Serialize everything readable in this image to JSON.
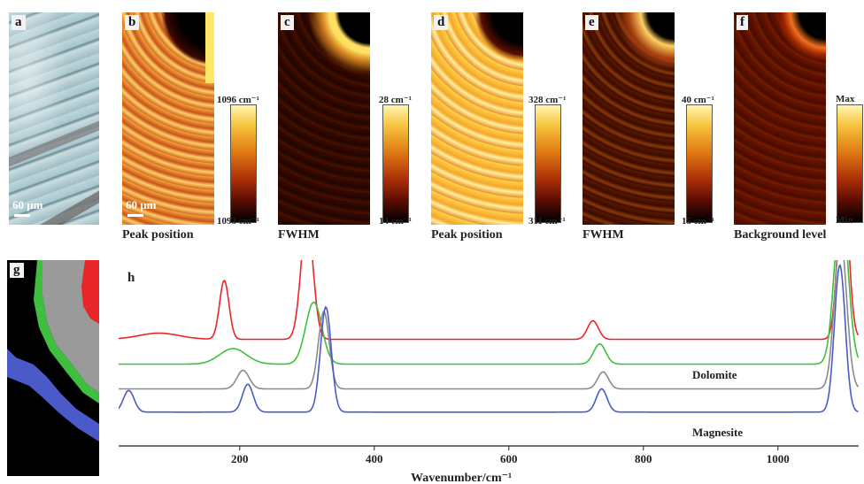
{
  "panels": {
    "a": {
      "label": "a",
      "scale": "60 μm"
    },
    "b": {
      "label": "b",
      "scale": "60 μm",
      "caption": "Peak position",
      "cb_top": "1096 cm⁻¹",
      "cb_bottom": "1093 cm⁻¹"
    },
    "c": {
      "label": "c",
      "caption": "FWHM",
      "cb_top": "28 cm⁻¹",
      "cb_bottom": "14 cm⁻¹"
    },
    "d": {
      "label": "d",
      "caption": "Peak position",
      "cb_top": "328 cm⁻¹",
      "cb_bottom": "311 cm⁻¹"
    },
    "e": {
      "label": "e",
      "caption": "FWHM",
      "cb_top": "40 cm⁻¹",
      "cb_bottom": "15 cm⁻¹"
    },
    "f": {
      "label": "f",
      "caption": "Background level",
      "cb_top": "Max",
      "cb_bottom": "Min"
    },
    "g": {
      "label": "g"
    },
    "h": {
      "label": "h"
    }
  },
  "colors": {
    "red": "#e8262a",
    "green": "#3fbf3f",
    "gray": "#8a8a8a",
    "blue": "#4a5ac8"
  },
  "chart_data": {
    "type": "line",
    "xlabel": "Wavenumber/cm⁻¹",
    "ylabel": "",
    "xlim": [
      20,
      1120
    ],
    "xticks": [
      200,
      400,
      600,
      800,
      1000
    ],
    "annotations": [
      "Dolomite",
      "Magnesite"
    ],
    "series": [
      {
        "color": "#e8262a",
        "baseline": 0.62,
        "peaks": [
          [
            80,
            0.04,
            30
          ],
          [
            177,
            0.38,
            7
          ],
          [
            300,
            0.78,
            9
          ],
          [
            725,
            0.12,
            8
          ],
          [
            1097,
            1.05,
            8
          ],
          [
            1140,
            0.05,
            10
          ]
        ]
      },
      {
        "color": "#3fbf3f",
        "baseline": 0.46,
        "peaks": [
          [
            190,
            0.1,
            20
          ],
          [
            310,
            0.4,
            12
          ],
          [
            735,
            0.13,
            9
          ],
          [
            1094,
            1.05,
            10
          ]
        ]
      },
      {
        "color": "#8a8a8a",
        "baseline": 0.3,
        "peaks": [
          [
            205,
            0.12,
            9
          ],
          [
            325,
            0.5,
            8
          ],
          [
            740,
            0.11,
            8
          ],
          [
            1093,
            0.98,
            9
          ]
        ]
      },
      {
        "color": "#4a5ac8",
        "baseline": 0.15,
        "peaks": [
          [
            35,
            0.14,
            8
          ],
          [
            212,
            0.18,
            8
          ],
          [
            328,
            0.68,
            8
          ],
          [
            738,
            0.15,
            8
          ],
          [
            1092,
            0.95,
            8
          ]
        ]
      }
    ]
  }
}
